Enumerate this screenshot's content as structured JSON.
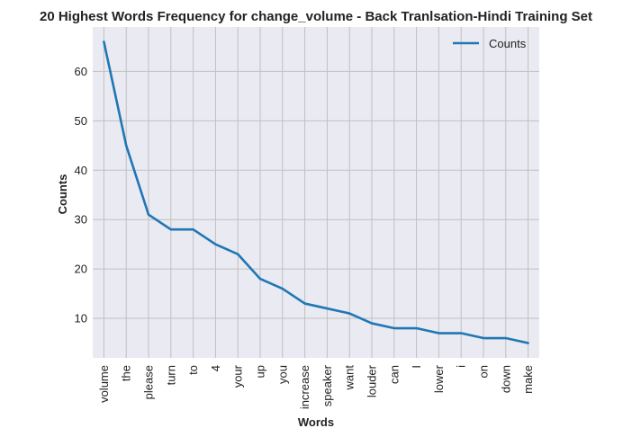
{
  "chart_data": {
    "type": "line",
    "title": "20 Highest Words Frequency for change_volume - Back Tranlsation-Hindi Training Set",
    "xlabel": "Words",
    "ylabel": "Counts",
    "categories": [
      "volume",
      "the",
      "please",
      "turn",
      "to",
      "4",
      "your",
      "up",
      "you",
      "increase",
      "speaker",
      "want",
      "louder",
      "can",
      "I",
      "lower",
      "i",
      "on",
      "down",
      "make"
    ],
    "series": [
      {
        "name": "Counts",
        "color": "#1f77b4",
        "values": [
          66,
          45,
          31,
          28,
          28,
          25,
          23,
          18,
          16,
          13,
          12,
          11,
          9,
          8,
          8,
          7,
          7,
          6,
          6,
          5
        ]
      }
    ],
    "yticks": [
      10,
      20,
      30,
      40,
      50,
      60
    ],
    "ylim": [
      2.0,
      69.0
    ],
    "grid": true,
    "legend": "top-right",
    "background": "#eaeaf2",
    "grid_color": "#c0c0c0"
  }
}
